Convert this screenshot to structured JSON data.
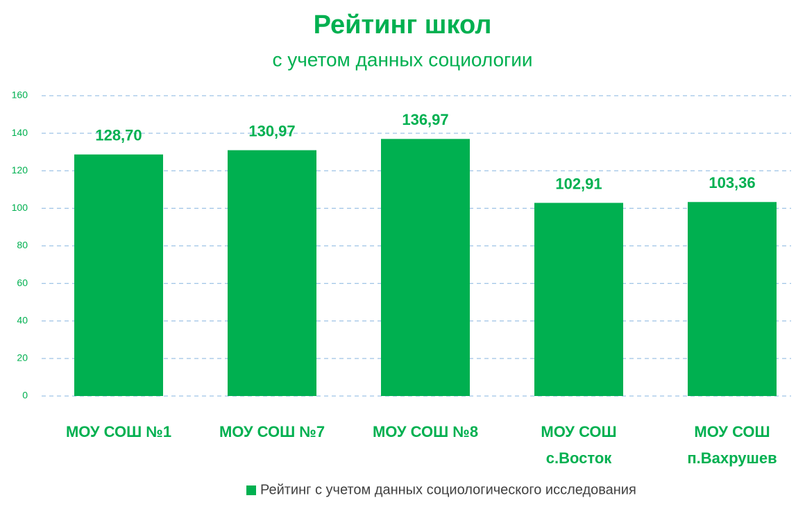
{
  "chart_data": {
    "type": "bar",
    "title": "Рейтинг школ",
    "subtitle": "с учетом данных социологии",
    "categories": [
      [
        "МОУ СОШ №1"
      ],
      [
        "МОУ СОШ №7"
      ],
      [
        "МОУ СОШ №8"
      ],
      [
        "МОУ СОШ",
        "с.Восток"
      ],
      [
        "МОУ СОШ",
        "п.Вахрушев"
      ]
    ],
    "series": [
      {
        "name": "Рейтинг с учетом данных социологического исследования",
        "color": "#00b050",
        "values": [
          128.7,
          130.97,
          136.97,
          102.91,
          103.36
        ],
        "value_labels": [
          "128,70",
          "130,97",
          "136,97",
          "102,91",
          "103,36"
        ]
      }
    ],
    "ylim": [
      0,
      160
    ],
    "yticks": [
      0,
      20,
      40,
      60,
      80,
      100,
      120,
      140,
      160
    ],
    "grid": true
  }
}
